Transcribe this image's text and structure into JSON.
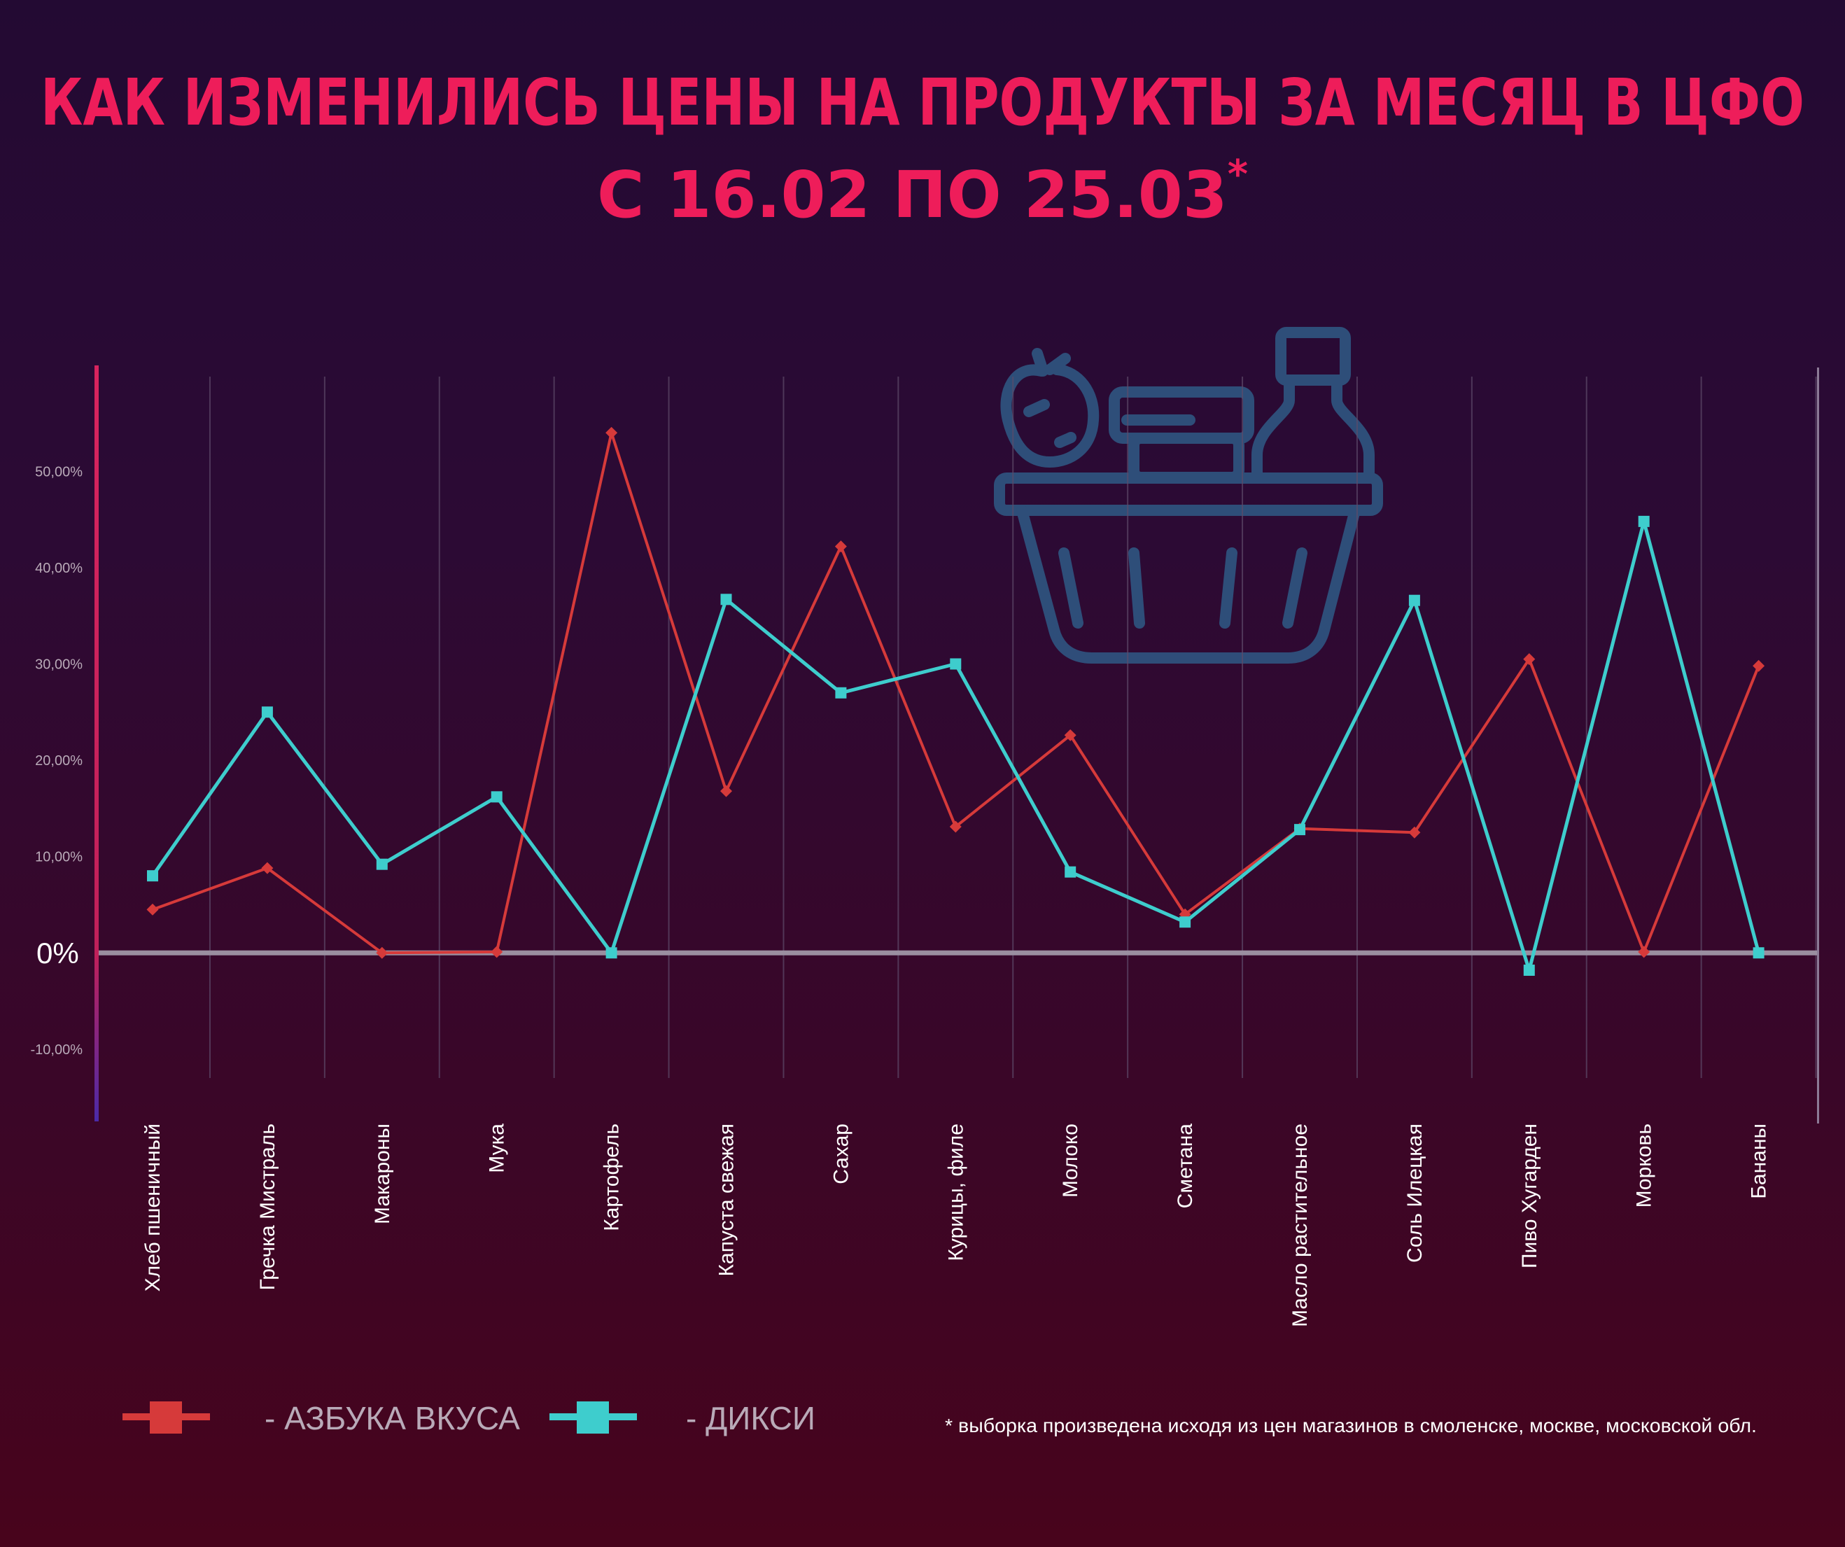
{
  "title": "КАК ИЗМЕНИЛИСЬ ЦЕНЫ НА ПРОДУКТЫ ЗА МЕСЯЦ В ЦФО",
  "subtitle": "С 16.02 ПО 25.03",
  "footnote_mark": "*",
  "zero_label": "0%",
  "footnote": "* выборка произведена исходя из цен магазинов в смоленске, москве, московской обл.",
  "decorative_icon": "grocery-basket-icon",
  "colors": {
    "title": "#ee1d5a",
    "azbuka": "#d63a3a",
    "diksi": "#3ecdcd",
    "axis_top": "#d8245e",
    "axis_bottom": "#5a2aa0",
    "zero_line": "#9a8ea0",
    "icon": "#2f5a86"
  },
  "chart_data": {
    "type": "line",
    "title": "КАК ИЗМЕНИЛИСЬ ЦЕНЫ НА ПРОДУКТЫ ЗА МЕСЯЦ В ЦФО",
    "subtitle": "С 16.02 ПО 25.03",
    "categories": [
      "Хлеб пшеничный",
      "Гречка Мистраль",
      "Макароны",
      "Мука",
      "Картофель",
      "Капуста свежая",
      "Сахар",
      "Курицы, филе",
      "Молоко",
      "Сметана",
      "Масло растительное",
      "Соль Илецкая",
      "Пиво Хугарден",
      "Морковь",
      "Бананы"
    ],
    "series": [
      {
        "name": "АЗБУКА ВКУСА",
        "color": "#d63a3a",
        "marker": "diamond",
        "values": [
          4.5,
          8.8,
          0.0,
          0.1,
          54.0,
          16.8,
          42.2,
          13.1,
          22.6,
          4.0,
          12.9,
          12.5,
          30.5,
          0.1,
          29.8
        ]
      },
      {
        "name": "ДИКСИ",
        "color": "#3ecdcd",
        "marker": "square",
        "values": [
          8.0,
          25.0,
          9.2,
          16.2,
          0.0,
          36.7,
          27.0,
          30.0,
          8.4,
          3.2,
          12.8,
          36.6,
          -1.8,
          44.8,
          0.0
        ]
      }
    ],
    "yticks": [
      "-10,00%",
      "10,00%",
      "20,00%",
      "30,00%",
      "40,00%",
      "50,00%"
    ],
    "ytick_values": [
      -10,
      10,
      20,
      30,
      40,
      50
    ],
    "ylim": [
      -17.5,
      61
    ],
    "xlabel": "",
    "ylabel": "",
    "grid": "vertical",
    "legend": "bottom-left"
  }
}
